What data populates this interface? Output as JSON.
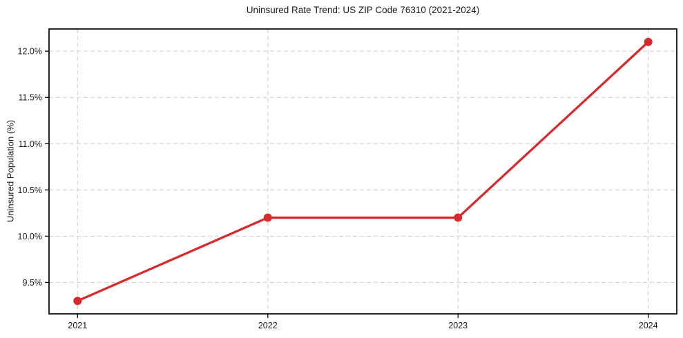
{
  "chart_data": {
    "type": "line",
    "title": "Uninsured Rate Trend: US ZIP Code 76310 (2021-2024)",
    "xlabel": "",
    "ylabel": "Uninsured Population (%)",
    "x": [
      2021,
      2022,
      2023,
      2024
    ],
    "x_tick_labels": [
      "2021",
      "2022",
      "2023",
      "2024"
    ],
    "series": [
      {
        "name": "Uninsured Rate",
        "values": [
          9.3,
          10.2,
          10.2,
          12.1
        ],
        "color": "#d62b2e",
        "marker": "circle"
      }
    ],
    "y_ticks": [
      9.5,
      10.0,
      10.5,
      11.0,
      11.5,
      12.0
    ],
    "y_tick_labels": [
      "9.5%",
      "10.0%",
      "10.5%",
      "11.0%",
      "11.5%",
      "12.0%"
    ],
    "ylim": [
      9.16,
      12.24
    ],
    "xlim": [
      2020.85,
      2024.15
    ],
    "grid": true,
    "grid_style": "dashed",
    "grid_color": "#cccccc",
    "axis_color": "#000000",
    "tick_label_color": "#1a1a1a",
    "background": "#ffffff",
    "legend_position": "none"
  }
}
